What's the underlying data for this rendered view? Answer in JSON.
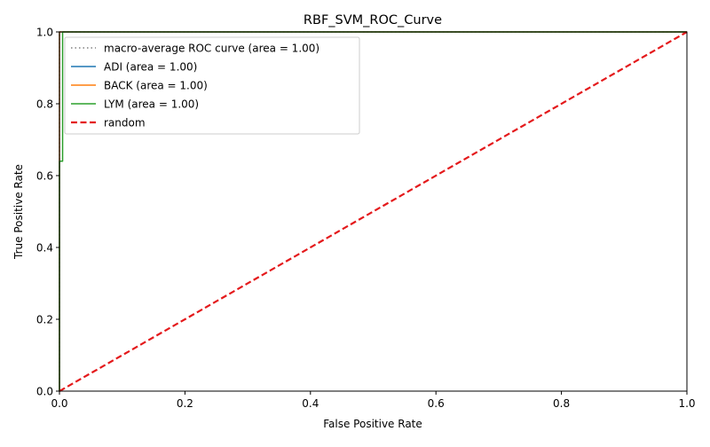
{
  "chart_data": {
    "type": "line",
    "title": "RBF_SVM_ROC_Curve",
    "xlabel": "False Positive Rate",
    "ylabel": "True Positive Rate",
    "xlim": [
      0.0,
      1.0
    ],
    "ylim": [
      0.0,
      1.0
    ],
    "xticks": [
      "0.0",
      "0.2",
      "0.4",
      "0.6",
      "0.8",
      "1.0"
    ],
    "yticks": [
      "0.0",
      "0.2",
      "0.4",
      "0.6",
      "0.8",
      "1.0"
    ],
    "grid": false,
    "legend_position": "top-left",
    "series": [
      {
        "name": "macro-average ROC curve (area = 1.00)",
        "key": "macro",
        "color": "#808080",
        "style": "dotted",
        "x": [
          0.0,
          0.0,
          1.0
        ],
        "y": [
          0.0,
          1.0,
          1.0
        ]
      },
      {
        "name": "ADI (area = 1.00)",
        "key": "adi",
        "color": "#1f77b4",
        "style": "solid",
        "x": [
          0.0,
          0.0,
          0.0,
          1.0
        ],
        "y": [
          0.0,
          0.5,
          1.0,
          1.0
        ]
      },
      {
        "name": "BACK (area = 1.00)",
        "key": "back",
        "color": "#ff7f0e",
        "style": "solid",
        "x": [
          0.0,
          0.0,
          1.0
        ],
        "y": [
          0.0,
          1.0,
          1.0
        ]
      },
      {
        "name": "LYM (area = 1.00)",
        "key": "lym",
        "color": "#2ca02c",
        "style": "solid",
        "x": [
          0.0,
          0.0,
          0.005,
          0.005,
          1.0
        ],
        "y": [
          0.0,
          0.64,
          0.64,
          1.0,
          1.0
        ]
      },
      {
        "name": "random",
        "key": "random",
        "color": "#e41a1c",
        "style": "dashed",
        "x": [
          0.0,
          1.0
        ],
        "y": [
          0.0,
          1.0
        ]
      }
    ]
  }
}
